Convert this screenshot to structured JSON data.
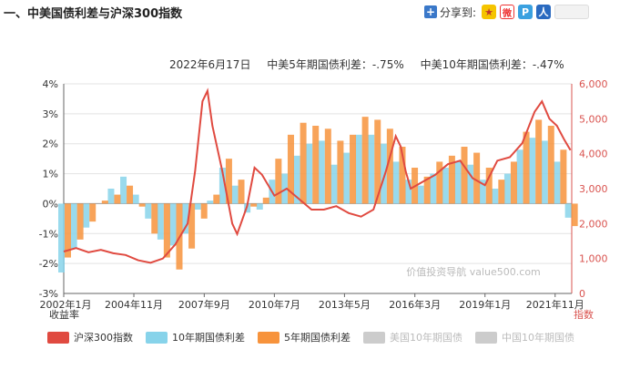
{
  "header": {
    "title": "一、中美国债利差与沪深300指数"
  },
  "share": {
    "label": "分享到:",
    "icons": [
      "plus-icon",
      "qzone-icon",
      "weibo-icon",
      "pengyou-icon",
      "renren-icon"
    ]
  },
  "info": {
    "date": "2022年6月17日",
    "spread5": "中美5年期国债利差：-.75%",
    "spread10": "中美10年期国债利差：-.47%"
  },
  "legend": {
    "items": [
      {
        "label": "沪深300指数",
        "color": "#e04a40",
        "muted": false
      },
      {
        "label": "10年期国债利差",
        "color": "#87d3ea",
        "muted": false
      },
      {
        "label": "5年期国债利差",
        "color": "#f7933c",
        "muted": false
      },
      {
        "label": "美国10年期国债",
        "color": "#cccccc",
        "muted": true
      },
      {
        "label": "中国10年期国债",
        "color": "#cccccc",
        "muted": true
      }
    ]
  },
  "chart_data": {
    "type": "bar+line",
    "x_tick_labels": [
      "2002年1月",
      "2004年11月",
      "2007年9月",
      "2010年7月",
      "2013年5月",
      "2016年3月",
      "2019年1月",
      "2021年11月"
    ],
    "x_unit_label": "收益率",
    "y_left": {
      "ticks": [
        "4%",
        "3%",
        "2%",
        "1%",
        "0%",
        "-1%",
        "-2%",
        "-3%"
      ],
      "range": [
        -3,
        4
      ]
    },
    "y_right": {
      "ticks": [
        "6,000",
        "5,000",
        "4,000",
        "3,000",
        "2,000",
        "1,000",
        "0"
      ],
      "range": [
        0,
        6000
      ],
      "label": "指数"
    },
    "watermark": "价值投资导航 value500.com",
    "series": [
      {
        "name": "10年期国债利差",
        "type": "bar",
        "color": "#87d3ea",
        "x": [
          2002.0,
          2002.5,
          2003.0,
          2003.5,
          2004.0,
          2004.5,
          2005.0,
          2005.5,
          2006.0,
          2006.5,
          2007.0,
          2007.5,
          2008.0,
          2008.5,
          2009.0,
          2009.5,
          2010.0,
          2010.5,
          2011.0,
          2011.5,
          2012.0,
          2012.5,
          2013.0,
          2013.5,
          2014.0,
          2014.5,
          2015.0,
          2015.5,
          2016.0,
          2016.5,
          2017.0,
          2017.5,
          2018.0,
          2018.5,
          2019.0,
          2019.5,
          2020.0,
          2020.5,
          2021.0,
          2021.5,
          2022.0,
          2022.45
        ],
        "values": [
          -2.3,
          -1.5,
          -0.8,
          0.0,
          0.5,
          0.9,
          0.3,
          -0.5,
          -1.2,
          -1.4,
          -1.0,
          -0.2,
          0.1,
          1.2,
          0.6,
          -0.3,
          -0.2,
          0.8,
          1.0,
          1.6,
          2.0,
          2.1,
          1.3,
          1.7,
          2.3,
          2.3,
          2.0,
          1.4,
          0.8,
          0.6,
          1.0,
          1.2,
          1.4,
          1.3,
          0.8,
          0.5,
          1.0,
          1.8,
          2.2,
          2.1,
          1.4,
          -0.47
        ]
      },
      {
        "name": "5年期国债利差",
        "type": "bar",
        "color": "#f7933c",
        "x": [
          2002.0,
          2002.5,
          2003.0,
          2003.5,
          2004.0,
          2004.5,
          2005.0,
          2005.5,
          2006.0,
          2006.5,
          2007.0,
          2007.5,
          2008.0,
          2008.5,
          2009.0,
          2009.5,
          2010.0,
          2010.5,
          2011.0,
          2011.5,
          2012.0,
          2012.5,
          2013.0,
          2013.5,
          2014.0,
          2014.5,
          2015.0,
          2015.5,
          2016.0,
          2016.5,
          2017.0,
          2017.5,
          2018.0,
          2018.5,
          2019.0,
          2019.5,
          2020.0,
          2020.5,
          2021.0,
          2021.5,
          2022.0,
          2022.45
        ],
        "values": [
          -1.8,
          -1.2,
          -0.6,
          0.1,
          0.3,
          0.6,
          -0.1,
          -1.0,
          -1.8,
          -2.2,
          -1.5,
          -0.5,
          0.3,
          1.5,
          0.8,
          -0.1,
          0.2,
          1.5,
          2.3,
          2.7,
          2.6,
          2.5,
          2.1,
          2.3,
          2.9,
          2.8,
          2.5,
          1.9,
          1.2,
          0.9,
          1.4,
          1.6,
          1.9,
          1.7,
          1.2,
          0.8,
          1.4,
          2.4,
          2.8,
          2.6,
          1.8,
          -0.75
        ]
      },
      {
        "name": "沪深300指数",
        "type": "line",
        "color": "#e04a40",
        "axis": "right",
        "x": [
          2002.0,
          2002.5,
          2003.0,
          2003.5,
          2004.0,
          2004.5,
          2005.0,
          2005.5,
          2006.0,
          2006.5,
          2007.0,
          2007.3,
          2007.6,
          2007.8,
          2008.0,
          2008.4,
          2008.8,
          2009.0,
          2009.4,
          2009.7,
          2010.0,
          2010.5,
          2011.0,
          2011.5,
          2012.0,
          2012.5,
          2013.0,
          2013.5,
          2014.0,
          2014.5,
          2015.0,
          2015.4,
          2015.6,
          2015.8,
          2016.0,
          2016.5,
          2017.0,
          2017.5,
          2018.0,
          2018.5,
          2019.0,
          2019.5,
          2020.0,
          2020.5,
          2021.0,
          2021.3,
          2021.6,
          2021.9,
          2022.2,
          2022.45
        ],
        "values": [
          1200,
          1300,
          1180,
          1250,
          1150,
          1100,
          950,
          880,
          1000,
          1400,
          2000,
          3500,
          5500,
          5800,
          4800,
          3500,
          2000,
          1700,
          2500,
          3600,
          3400,
          2800,
          3000,
          2700,
          2400,
          2400,
          2500,
          2300,
          2200,
          2400,
          3500,
          4500,
          4200,
          3500,
          3000,
          3200,
          3400,
          3700,
          3800,
          3300,
          3100,
          3800,
          3900,
          4300,
          5200,
          5500,
          5000,
          4800,
          4400,
          4100
        ]
      }
    ]
  }
}
